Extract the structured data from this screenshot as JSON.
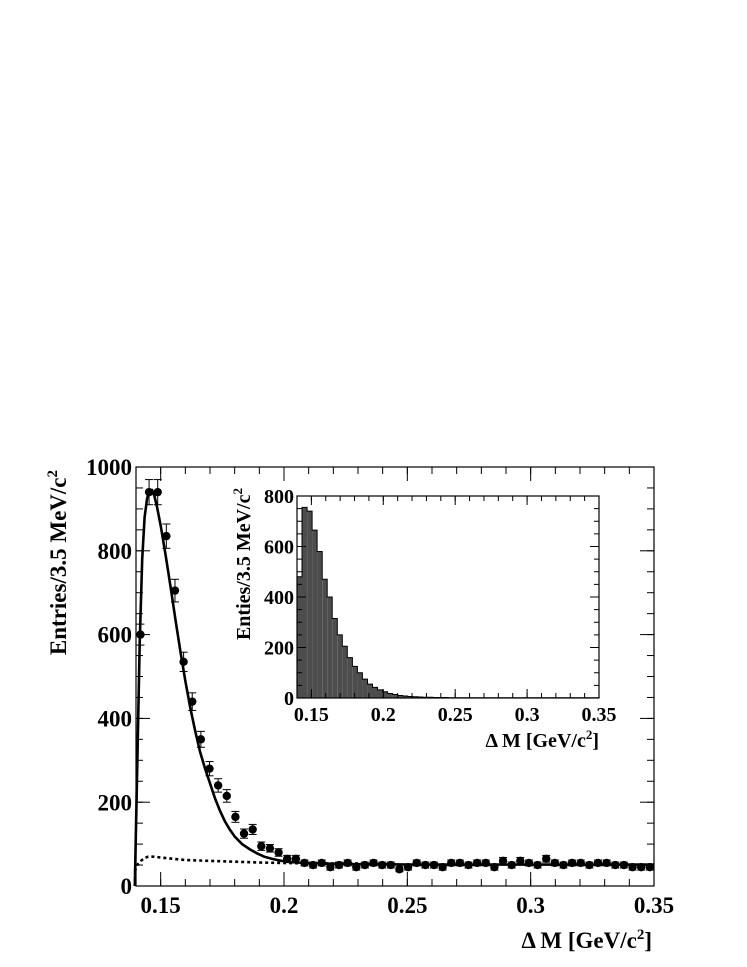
{
  "chart_data": [
    {
      "type": "scatter",
      "role": "main",
      "xlabel_main": "Δ M [GeV/c",
      "xlabel_sup": "2",
      "xlabel_tail": "]",
      "ylabel_main": "Entries/3.5 MeV/c",
      "ylabel_sup": "2",
      "xlim": [
        0.14,
        0.35
      ],
      "ylim": [
        0,
        1000
      ],
      "xticks": [
        "0.15",
        "0.2",
        "0.25",
        "0.3",
        "0.35"
      ],
      "yticks": [
        "0",
        "200",
        "400",
        "600",
        "800",
        "1000"
      ],
      "grid": false,
      "series": [
        {
          "kind": "data-points-with-errors",
          "x": [
            0.1418,
            0.1453,
            0.1488,
            0.1523,
            0.1558,
            0.1593,
            0.1628,
            0.1663,
            0.1698,
            0.1733,
            0.1768,
            0.1803,
            0.1838,
            0.1873,
            0.1908,
            0.1943,
            0.1978,
            0.2013,
            0.2048,
            0.2083,
            0.2118,
            0.2153,
            0.2188,
            0.2223,
            0.2258,
            0.2293,
            0.2328,
            0.2363,
            0.2398,
            0.2433,
            0.2468,
            0.2503,
            0.2538,
            0.2573,
            0.2608,
            0.2643,
            0.2678,
            0.2713,
            0.2748,
            0.2783,
            0.2818,
            0.2853,
            0.2888,
            0.2923,
            0.2958,
            0.2993,
            0.3028,
            0.3063,
            0.3098,
            0.3133,
            0.3168,
            0.3203,
            0.3238,
            0.3273,
            0.3308,
            0.3343,
            0.3378,
            0.3413,
            0.3448,
            0.3483
          ],
          "y": [
            600,
            940,
            940,
            835,
            705,
            535,
            440,
            350,
            280,
            240,
            215,
            165,
            125,
            135,
            95,
            90,
            80,
            65,
            65,
            55,
            50,
            55,
            45,
            50,
            55,
            45,
            50,
            55,
            50,
            50,
            40,
            45,
            55,
            50,
            50,
            45,
            55,
            55,
            50,
            55,
            55,
            45,
            60,
            50,
            60,
            55,
            50,
            65,
            55,
            50,
            55,
            55,
            50,
            55,
            55,
            50,
            50,
            45,
            45,
            45
          ],
          "yerr": [
            25,
            30,
            30,
            29,
            27,
            23,
            21,
            19,
            17,
            16,
            15,
            13,
            11,
            12,
            10,
            9,
            9,
            8,
            8,
            7,
            7,
            7,
            7,
            7,
            7,
            7,
            7,
            7,
            7,
            7,
            6,
            7,
            7,
            7,
            7,
            7,
            7,
            7,
            7,
            7,
            7,
            7,
            8,
            7,
            8,
            7,
            7,
            8,
            7,
            7,
            7,
            7,
            7,
            7,
            7,
            7,
            7,
            7,
            7,
            7
          ]
        },
        {
          "kind": "fit-total",
          "style": "solid",
          "x": [
            0.1395,
            0.1405,
            0.1415,
            0.1425,
            0.1435,
            0.1445,
            0.1455,
            0.1465,
            0.1475,
            0.1485,
            0.15,
            0.152,
            0.154,
            0.156,
            0.158,
            0.16,
            0.162,
            0.164,
            0.166,
            0.168,
            0.17,
            0.172,
            0.174,
            0.176,
            0.178,
            0.18,
            0.183,
            0.186,
            0.189,
            0.192,
            0.195,
            0.198,
            0.201,
            0.205,
            0.21,
            0.215,
            0.22,
            0.23,
            0.24,
            0.25,
            0.26,
            0.27,
            0.28,
            0.29,
            0.3,
            0.31,
            0.32,
            0.33,
            0.34,
            0.35
          ],
          "y": [
            0,
            280,
            580,
            780,
            880,
            925,
            945,
            945,
            930,
            905,
            860,
            790,
            715,
            635,
            560,
            490,
            425,
            370,
            320,
            280,
            245,
            210,
            180,
            155,
            135,
            118,
            100,
            88,
            78,
            70,
            65,
            61,
            58,
            56,
            55,
            54,
            53,
            52,
            52,
            51,
            51,
            51,
            51,
            51,
            51,
            51,
            51,
            51,
            51,
            51
          ]
        },
        {
          "kind": "fit-background",
          "style": "dashed",
          "x": [
            0.1395,
            0.1405,
            0.142,
            0.1435,
            0.145,
            0.147,
            0.15,
            0.155,
            0.16,
            0.17,
            0.18,
            0.19,
            0.2,
            0.21,
            0.22,
            0.23
          ],
          "y": [
            35,
            50,
            60,
            67,
            70,
            70,
            68,
            65,
            62,
            60,
            58,
            56,
            55,
            54,
            54,
            54
          ]
        }
      ]
    },
    {
      "type": "bar",
      "role": "inset",
      "xlabel_main": "Δ M [GeV/c",
      "xlabel_sup": "2",
      "xlabel_tail": "]",
      "ylabel_main": "Enties/3.5 MeV/c",
      "ylabel_sup": "2",
      "xlim": [
        0.14,
        0.35
      ],
      "ylim": [
        0,
        800
      ],
      "xticks": [
        "0.15",
        "0.2",
        "0.25",
        "0.3",
        "0.35"
      ],
      "yticks": [
        "0",
        "200",
        "400",
        "600",
        "800"
      ],
      "grid": false,
      "fill_color": "#4d4d4d",
      "bin_edges": [
        0.14,
        0.1435,
        0.147,
        0.1505,
        0.154,
        0.1575,
        0.161,
        0.1645,
        0.168,
        0.1715,
        0.175,
        0.1785,
        0.182,
        0.1855,
        0.189,
        0.1925,
        0.196,
        0.1995,
        0.203,
        0.2065,
        0.21,
        0.2135,
        0.217,
        0.2205,
        0.224,
        0.2275,
        0.231,
        0.2345,
        0.238,
        0.2415,
        0.245,
        0.2485,
        0.252,
        0.2555,
        0.259,
        0.2625,
        0.266,
        0.2695,
        0.273,
        0.2765,
        0.28,
        0.2835,
        0.287,
        0.2905,
        0.294,
        0.2975,
        0.301,
        0.3045,
        0.308,
        0.3115,
        0.315,
        0.3185,
        0.322,
        0.3255,
        0.329,
        0.3325,
        0.336,
        0.3395,
        0.343,
        0.3465,
        0.35
      ],
      "values": [
        480,
        755,
        740,
        665,
        580,
        470,
        400,
        315,
        250,
        205,
        160,
        125,
        100,
        75,
        55,
        42,
        32,
        25,
        18,
        14,
        10,
        8,
        6,
        5,
        4,
        3,
        3,
        2,
        2,
        2,
        1,
        1,
        1,
        1,
        1,
        1,
        1,
        1,
        1,
        1,
        1,
        1,
        1,
        1,
        1,
        1,
        1,
        1,
        1,
        1,
        1,
        1,
        1,
        1,
        1,
        1,
        1,
        1,
        1,
        1
      ]
    }
  ]
}
